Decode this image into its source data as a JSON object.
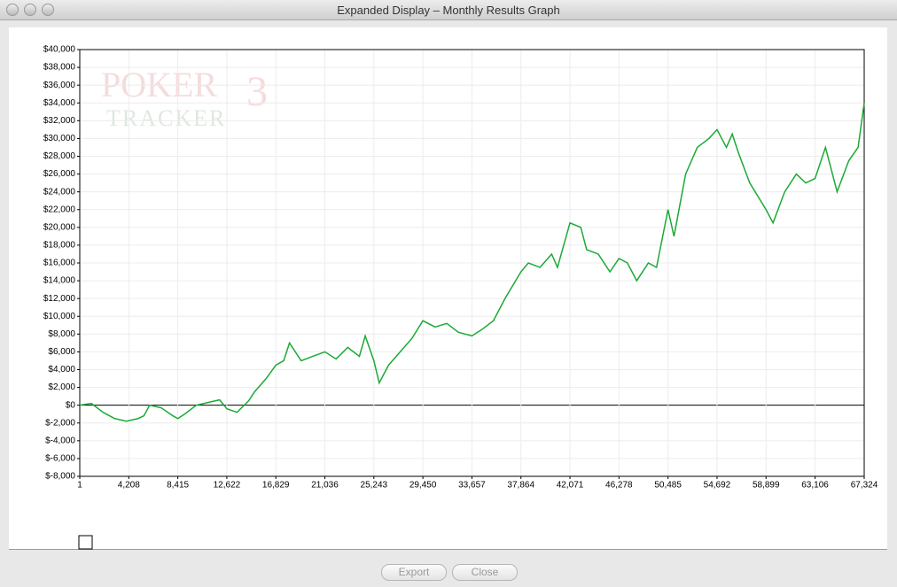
{
  "window": {
    "title": "Expanded Display – Monthly Results Graph",
    "buttons": [
      "Export",
      "Close"
    ]
  },
  "watermark": {
    "word": "POKER",
    "sub": "TRACKER",
    "mark": "3"
  },
  "chart_data": {
    "type": "line",
    "x": [
      1,
      1000,
      2000,
      3000,
      4000,
      5000,
      5500,
      6000,
      7000,
      8000,
      8415,
      9000,
      10000,
      11000,
      12000,
      12622,
      13500,
      14500,
      15000,
      16000,
      16829,
      17500,
      18000,
      19000,
      20000,
      21036,
      22000,
      23000,
      24000,
      24500,
      25243,
      25700,
      26500,
      27500,
      28500,
      29450,
      30500,
      31500,
      32500,
      33657,
      34500,
      35500,
      36500,
      37864,
      38500,
      39500,
      40500,
      41000,
      42071,
      43000,
      43500,
      44500,
      45500,
      46278,
      47000,
      47800,
      48800,
      49500,
      50485,
      51000,
      52000,
      53000,
      54000,
      54692,
      55500,
      56000,
      56500,
      57500,
      58899,
      59500,
      60500,
      61500,
      62300,
      63106,
      64000,
      65000,
      66000,
      66800,
      67324
    ],
    "series": [
      {
        "color": "#1aaa35",
        "values": [
          0,
          200,
          -800,
          -1500,
          -1800,
          -1500,
          -1200,
          0,
          -300,
          -1200,
          -1500,
          -1000,
          0,
          300,
          600,
          -400,
          -800,
          500,
          1500,
          3000,
          4500,
          5000,
          7000,
          5000,
          5500,
          6000,
          5200,
          6500,
          5500,
          7800,
          5000,
          2500,
          4500,
          6000,
          7500,
          9500,
          8800,
          9200,
          8200,
          7800,
          8500,
          9500,
          12000,
          15000,
          16000,
          15500,
          17000,
          15500,
          20500,
          20000,
          17500,
          17000,
          15000,
          16500,
          16000,
          14000,
          16000,
          15500,
          22000,
          19000,
          26000,
          29000,
          30000,
          31000,
          29000,
          30500,
          28500,
          25000,
          22000,
          20500,
          24000,
          26000,
          25000,
          25500,
          29000,
          24000,
          27500,
          29000,
          34000
        ]
      }
    ],
    "xlim": [
      1,
      67324
    ],
    "xticks": [
      1,
      {
        "value": 4208,
        "label": "4,208"
      },
      {
        "value": 8415,
        "label": "8,415"
      },
      {
        "value": 12622,
        "label": "12,622"
      },
      {
        "value": 16829,
        "label": "16,829"
      },
      {
        "value": 21036,
        "label": "21,036"
      },
      {
        "value": 25243,
        "label": "25,243"
      },
      {
        "value": 29450,
        "label": "29,450"
      },
      {
        "value": 33657,
        "label": "33,657"
      },
      {
        "value": 37864,
        "label": "37,864"
      },
      {
        "value": 42071,
        "label": "42,071"
      },
      {
        "value": 46278,
        "label": "46,278"
      },
      {
        "value": 50485,
        "label": "50,485"
      },
      {
        "value": 54692,
        "label": "54,692"
      },
      {
        "value": 58899,
        "label": "58,899"
      },
      {
        "value": 63106,
        "label": "63,106"
      },
      {
        "value": 67324,
        "label": "67,324"
      }
    ],
    "ylim": [
      -8000,
      40000
    ],
    "yticks": [
      {
        "value": -8000,
        "label": "$-8,000"
      },
      {
        "value": -6000,
        "label": "$-6,000"
      },
      {
        "value": -4000,
        "label": "$-4,000"
      },
      {
        "value": -2000,
        "label": "$-2,000"
      },
      {
        "value": 0,
        "label": "$0"
      },
      {
        "value": 2000,
        "label": "$2,000"
      },
      {
        "value": 4000,
        "label": "$4,000"
      },
      {
        "value": 6000,
        "label": "$6,000"
      },
      {
        "value": 8000,
        "label": "$8,000"
      },
      {
        "value": 10000,
        "label": "$10,000"
      },
      {
        "value": 12000,
        "label": "$12,000"
      },
      {
        "value": 14000,
        "label": "$14,000"
      },
      {
        "value": 16000,
        "label": "$16,000"
      },
      {
        "value": 18000,
        "label": "$18,000"
      },
      {
        "value": 20000,
        "label": "$20,000"
      },
      {
        "value": 22000,
        "label": "$22,000"
      },
      {
        "value": 24000,
        "label": "$24,000"
      },
      {
        "value": 26000,
        "label": "$26,000"
      },
      {
        "value": 28000,
        "label": "$28,000"
      },
      {
        "value": 30000,
        "label": "$30,000"
      },
      {
        "value": 32000,
        "label": "$32,000"
      },
      {
        "value": 34000,
        "label": "$34,000"
      },
      {
        "value": 36000,
        "label": "$36,000"
      },
      {
        "value": 38000,
        "label": "$38,000"
      },
      {
        "value": 40000,
        "label": "$40,000"
      }
    ],
    "grid": true
  }
}
